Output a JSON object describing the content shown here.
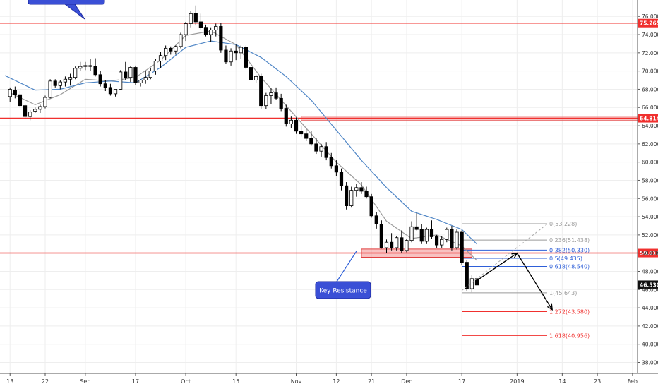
{
  "chart_data": {
    "type": "candlestick",
    "title": "",
    "xlabel": "",
    "ylabel": "",
    "ylim": [
      36.8,
      77.8
    ],
    "y_ticks": [
      38,
      40,
      42,
      44,
      46,
      48,
      50,
      52,
      54,
      56,
      58,
      60,
      62,
      64,
      66,
      68,
      70,
      72,
      74,
      76
    ],
    "x_ticks": [
      {
        "label": "13",
        "i": 0
      },
      {
        "label": "22",
        "i": 7
      },
      {
        "label": "Sep",
        "i": 15
      },
      {
        "label": "17",
        "i": 25
      },
      {
        "label": "Oct",
        "i": 35
      },
      {
        "label": "15",
        "i": 45
      },
      {
        "label": "Nov",
        "i": 57
      },
      {
        "label": "12",
        "i": 65
      },
      {
        "label": "21",
        "i": 72
      },
      {
        "label": "Dec",
        "i": 79
      },
      {
        "label": "17",
        "i": 90
      },
      {
        "label": "2019",
        "i": 101
      },
      {
        "label": "14",
        "i": 110
      },
      {
        "label": "23",
        "i": 117
      },
      {
        "label": "Feb",
        "i": 124
      }
    ],
    "index_range": [
      -2,
      125
    ],
    "series": [
      {
        "type": "candles",
        "values": [
          [
            67.2,
            68.2,
            66.6,
            68.0
          ],
          [
            67.9,
            68.3,
            67.0,
            67.4
          ],
          [
            67.4,
            67.8,
            66.0,
            66.2
          ],
          [
            66.2,
            66.4,
            64.8,
            65.0
          ],
          [
            65.0,
            65.7,
            64.6,
            65.5
          ],
          [
            65.6,
            66.0,
            65.4,
            65.8
          ],
          [
            65.8,
            66.3,
            65.4,
            66.1
          ],
          [
            66.1,
            67.3,
            65.9,
            67.1
          ],
          [
            67.1,
            69.1,
            67.0,
            68.9
          ],
          [
            68.9,
            69.1,
            68.2,
            68.4
          ],
          [
            68.4,
            69.0,
            68.0,
            68.8
          ],
          [
            68.8,
            69.4,
            68.3,
            69.1
          ],
          [
            69.1,
            69.7,
            68.4,
            69.3
          ],
          [
            69.3,
            70.5,
            69.1,
            70.3
          ],
          [
            70.3,
            71.0,
            70.0,
            70.5
          ],
          [
            70.5,
            71.0,
            70.1,
            70.6
          ],
          [
            70.6,
            71.3,
            70.0,
            70.5
          ],
          [
            70.5,
            71.4,
            69.4,
            69.6
          ],
          [
            69.6,
            70.0,
            68.3,
            68.6
          ],
          [
            68.6,
            69.0,
            67.8,
            68.2
          ],
          [
            68.2,
            68.6,
            67.3,
            67.5
          ],
          [
            67.5,
            68.0,
            67.2,
            68.0
          ],
          [
            68.0,
            70.1,
            67.9,
            69.9
          ],
          [
            69.9,
            71.0,
            69.0,
            69.3
          ],
          [
            69.3,
            70.5,
            68.8,
            70.4
          ],
          [
            70.4,
            70.6,
            68.5,
            68.7
          ],
          [
            68.7,
            69.1,
            68.3,
            69.0
          ],
          [
            69.0,
            70.0,
            68.6,
            69.3
          ],
          [
            69.3,
            70.3,
            69.1,
            70.0
          ],
          [
            70.0,
            71.3,
            69.6,
            71.1
          ],
          [
            71.1,
            72.1,
            70.3,
            71.7
          ],
          [
            71.7,
            72.8,
            71.2,
            72.5
          ],
          [
            72.5,
            72.7,
            71.8,
            72.2
          ],
          [
            72.2,
            72.8,
            71.8,
            72.7
          ],
          [
            72.7,
            74.2,
            72.5,
            74.0
          ],
          [
            74.0,
            75.4,
            73.3,
            75.2
          ],
          [
            75.2,
            76.6,
            74.8,
            76.3
          ],
          [
            76.3,
            77.2,
            75.0,
            75.4
          ],
          [
            75.4,
            76.3,
            74.5,
            74.8
          ],
          [
            74.8,
            75.1,
            73.8,
            74.0
          ],
          [
            74.0,
            74.8,
            73.2,
            74.5
          ],
          [
            74.5,
            75.2,
            73.8,
            74.9
          ],
          [
            74.9,
            75.3,
            72.0,
            72.3
          ],
          [
            72.3,
            72.8,
            70.8,
            71.0
          ],
          [
            71.0,
            72.5,
            70.6,
            72.2
          ],
          [
            72.2,
            72.9,
            71.2,
            72.0
          ],
          [
            72.0,
            72.8,
            71.3,
            72.6
          ],
          [
            72.6,
            72.8,
            70.2,
            70.4
          ],
          [
            70.4,
            70.7,
            68.8,
            69.0
          ],
          [
            69.0,
            69.6,
            68.7,
            69.4
          ],
          [
            69.4,
            69.7,
            65.8,
            66.2
          ],
          [
            66.2,
            67.6,
            65.8,
            67.3
          ],
          [
            67.3,
            68.1,
            66.4,
            67.6
          ],
          [
            67.6,
            68.2,
            66.8,
            67.0
          ],
          [
            67.0,
            67.5,
            65.6,
            65.9
          ],
          [
            65.9,
            66.3,
            63.9,
            64.2
          ],
          [
            64.2,
            65.0,
            63.7,
            64.6
          ],
          [
            64.6,
            64.9,
            63.1,
            63.4
          ],
          [
            63.4,
            64.0,
            62.8,
            63.1
          ],
          [
            63.1,
            63.6,
            62.3,
            62.6
          ],
          [
            62.6,
            63.4,
            61.8,
            62.0
          ],
          [
            62.0,
            62.6,
            60.9,
            61.2
          ],
          [
            61.2,
            62.0,
            60.6,
            61.7
          ],
          [
            61.7,
            62.2,
            60.2,
            60.5
          ],
          [
            60.5,
            61.0,
            59.3,
            59.6
          ],
          [
            59.6,
            60.2,
            58.5,
            58.9
          ],
          [
            58.9,
            59.3,
            56.9,
            57.4
          ],
          [
            57.4,
            57.8,
            54.8,
            55.2
          ],
          [
            55.2,
            57.3,
            55.0,
            56.9
          ],
          [
            56.9,
            57.6,
            56.2,
            57.2
          ],
          [
            57.2,
            57.8,
            56.5,
            56.8
          ],
          [
            56.8,
            57.3,
            56.0,
            56.2
          ],
          [
            56.2,
            56.5,
            53.9,
            54.1
          ],
          [
            54.1,
            54.5,
            52.7,
            53.2
          ],
          [
            53.2,
            53.6,
            50.5,
            50.6
          ],
          [
            50.6,
            51.5,
            50.0,
            51.2
          ],
          [
            51.2,
            52.2,
            50.3,
            50.6
          ],
          [
            50.6,
            51.9,
            50.3,
            51.7
          ],
          [
            51.7,
            52.5,
            50.0,
            50.3
          ],
          [
            50.3,
            51.6,
            50.1,
            51.4
          ],
          [
            51.4,
            53.5,
            51.2,
            52.9
          ],
          [
            52.9,
            54.4,
            52.5,
            52.6
          ],
          [
            52.6,
            53.2,
            51.0,
            51.3
          ],
          [
            51.3,
            52.8,
            51.0,
            52.6
          ],
          [
            52.6,
            53.6,
            51.6,
            51.8
          ],
          [
            51.8,
            52.0,
            50.6,
            50.9
          ],
          [
            50.9,
            51.9,
            50.6,
            51.5
          ],
          [
            51.5,
            52.8,
            51.2,
            52.6
          ],
          [
            52.6,
            53.0,
            50.3,
            50.6
          ],
          [
            50.6,
            52.6,
            50.4,
            52.3
          ],
          [
            52.3,
            52.5,
            48.7,
            49.0
          ],
          [
            49.0,
            49.2,
            45.8,
            46.1
          ],
          [
            46.1,
            47.6,
            45.7,
            47.2
          ],
          [
            47.2,
            47.6,
            46.4,
            46.5
          ]
        ]
      },
      {
        "type": "line",
        "color": "#9a9a9a",
        "values": [
          [
            0,
            67.6
          ],
          [
            5,
            66.3
          ],
          [
            10,
            67.4
          ],
          [
            15,
            69.1
          ],
          [
            20,
            68.9
          ],
          [
            25,
            69.3
          ],
          [
            30,
            71.2
          ],
          [
            35,
            73.9
          ],
          [
            40,
            74.4
          ],
          [
            45,
            72.9
          ],
          [
            50,
            69.3
          ],
          [
            55,
            66.2
          ],
          [
            60,
            63.1
          ],
          [
            65,
            60.0
          ],
          [
            70,
            57.5
          ],
          [
            75,
            53.5
          ],
          [
            80,
            51.6
          ],
          [
            85,
            52.0
          ],
          [
            90,
            50.8
          ],
          [
            93,
            49.2
          ]
        ]
      },
      {
        "type": "line",
        "color": "#4f86c6",
        "values": [
          [
            -1,
            69.5
          ],
          [
            5,
            67.9
          ],
          [
            10,
            68.0
          ],
          [
            15,
            68.7
          ],
          [
            20,
            68.9
          ],
          [
            25,
            68.7
          ],
          [
            30,
            70.4
          ],
          [
            35,
            72.6
          ],
          [
            40,
            73.3
          ],
          [
            45,
            72.9
          ],
          [
            50,
            71.5
          ],
          [
            55,
            69.4
          ],
          [
            60,
            66.8
          ],
          [
            65,
            63.5
          ],
          [
            70,
            60.2
          ],
          [
            75,
            57.2
          ],
          [
            80,
            54.6
          ],
          [
            85,
            53.7
          ],
          [
            90,
            52.6
          ],
          [
            93,
            51.0
          ]
        ]
      }
    ],
    "horizontal_lines": [
      {
        "value": 75.265,
        "label": "75.265",
        "color": "#f0302e"
      },
      {
        "value": 64.814,
        "label": "64.814",
        "color": "#f0302e"
      },
      {
        "value": 50.012,
        "label": "50.012",
        "color": "#f0302e"
      }
    ],
    "last_price": {
      "value": 46.53,
      "label": "46.530"
    },
    "fib_levels": [
      {
        "label": "0(53.228)",
        "value": 53.228,
        "color": "#9a9a9a"
      },
      {
        "label": "0.236(51.438)",
        "value": 51.438,
        "color": "#9a9a9a"
      },
      {
        "label": "0.382(50.330)",
        "value": 50.33,
        "color": "#2e5fd8"
      },
      {
        "label": "0.5(49.435)",
        "value": 49.435,
        "color": "#2e5fd8"
      },
      {
        "label": "0.618(48.540)",
        "value": 48.54,
        "color": "#2e5fd8"
      },
      {
        "label": "1(45.643)",
        "value": 45.643,
        "color": "#9a9a9a"
      },
      {
        "label": "1.272(43.580)",
        "value": 43.58,
        "color": "#f0302e"
      },
      {
        "label": "1.618(40.956)",
        "value": 40.956,
        "color": "#f0302e"
      }
    ],
    "zones": [
      {
        "from_i": 70,
        "to_i": 92,
        "low": 49.55,
        "high": 50.45
      },
      {
        "from_i": 58,
        "to_i": 125,
        "low": 64.55,
        "high": 65.05
      }
    ],
    "annotations": [
      {
        "text": "Key Resistance"
      },
      {
        "text": ""
      }
    ],
    "projection": {
      "points": [
        [
          93,
          47.0
        ],
        [
          101,
          50.0
        ],
        [
          108,
          43.8
        ]
      ],
      "dashed_to": [
        [
          90,
          45.9
        ],
        [
          107,
          53.2
        ]
      ]
    }
  }
}
